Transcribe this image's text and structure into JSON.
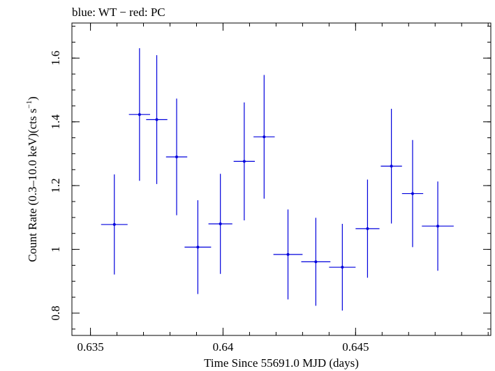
{
  "chart_data": {
    "type": "scatter",
    "title": "blue: WT − red: PC",
    "xlabel": "Time Since 55691.0 MJD (days)",
    "ylabel_main": "Count Rate (0.3–10.0 keV)(cts s",
    "ylabel_sup": "−1",
    "ylabel_close": ")",
    "xlim": [
      0.6343,
      0.6501
    ],
    "ylim": [
      0.73,
      1.71
    ],
    "xticks": [
      {
        "value": 0.635,
        "label": "0.635"
      },
      {
        "value": 0.64,
        "label": "0.64"
      },
      {
        "value": 0.645,
        "label": "0.645"
      }
    ],
    "yticks": [
      {
        "value": 0.8,
        "label": "0.8"
      },
      {
        "value": 1.0,
        "label": "1"
      },
      {
        "value": 1.2,
        "label": "1.2"
      },
      {
        "value": 1.4,
        "label": "1.4"
      },
      {
        "value": 1.6,
        "label": "1.6"
      }
    ],
    "x_minor_step": 0.001,
    "y_minor_step": 0.05,
    "grid": false,
    "series": [
      {
        "color": "#0000dd",
        "points": [
          {
            "x": 0.6359,
            "xerr": 0.0005,
            "y": 1.078,
            "yerr": 0.157
          },
          {
            "x": 0.63685,
            "xerr": 0.0004,
            "y": 1.423,
            "yerr": 0.208
          },
          {
            "x": 0.6375,
            "xerr": 0.0004,
            "y": 1.407,
            "yerr": 0.202
          },
          {
            "x": 0.63825,
            "xerr": 0.0004,
            "y": 1.29,
            "yerr": 0.183
          },
          {
            "x": 0.63905,
            "xerr": 0.0005,
            "y": 1.007,
            "yerr": 0.147
          },
          {
            "x": 0.6399,
            "xerr": 0.00045,
            "y": 1.08,
            "yerr": 0.157
          },
          {
            "x": 0.6408,
            "xerr": 0.0004,
            "y": 1.276,
            "yerr": 0.185
          },
          {
            "x": 0.64155,
            "xerr": 0.0004,
            "y": 1.353,
            "yerr": 0.194
          },
          {
            "x": 0.64245,
            "xerr": 0.00055,
            "y": 0.984,
            "yerr": 0.141
          },
          {
            "x": 0.6435,
            "xerr": 0.00055,
            "y": 0.961,
            "yerr": 0.138
          },
          {
            "x": 0.6445,
            "xerr": 0.0005,
            "y": 0.944,
            "yerr": 0.136
          },
          {
            "x": 0.64545,
            "xerr": 0.00045,
            "y": 1.065,
            "yerr": 0.154
          },
          {
            "x": 0.64635,
            "xerr": 0.0004,
            "y": 1.261,
            "yerr": 0.18
          },
          {
            "x": 0.64715,
            "xerr": 0.0004,
            "y": 1.175,
            "yerr": 0.168
          },
          {
            "x": 0.6481,
            "xerr": 0.0006,
            "y": 1.073,
            "yerr": 0.14
          }
        ]
      }
    ]
  }
}
